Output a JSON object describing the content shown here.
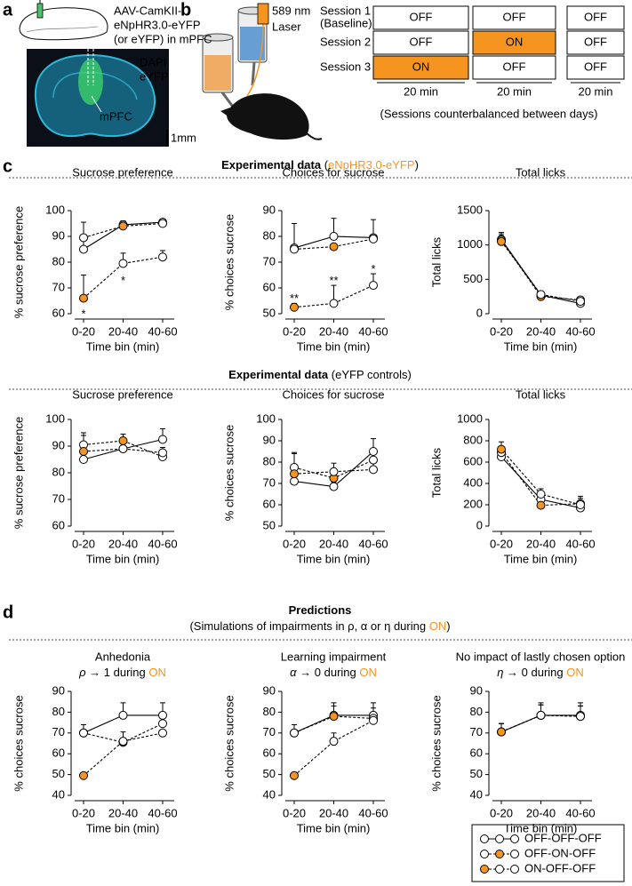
{
  "panel_labels": [
    "a",
    "b",
    "c",
    "d"
  ],
  "panel_a": {
    "construct": [
      "AAV-CamKII-",
      "eNpHR3.0-eYFP",
      "(or eYFP) in mPFC"
    ],
    "stains": [
      {
        "text": "DAPI",
        "color": "#3fd3ee"
      },
      {
        "text": "eYFP",
        "color": "#3ed86a"
      }
    ],
    "region": "mPFC",
    "scale": "1mm"
  },
  "panel_b": {
    "laser": [
      "589 nm",
      "Laser"
    ],
    "laser_color": "#f5941f",
    "sessions": [
      {
        "label": [
          "Session 1",
          "(Baseline)"
        ],
        "cells": [
          {
            "text": "OFF",
            "fill": "#ffffff"
          },
          {
            "text": "OFF",
            "fill": "#ffffff"
          },
          {
            "text": "OFF",
            "fill": "#ffffff"
          }
        ]
      },
      {
        "label": [
          "Session 2"
        ],
        "cells": [
          {
            "text": "OFF",
            "fill": "#ffffff"
          },
          {
            "text": "ON",
            "fill": "#f5941f"
          },
          {
            "text": "OFF",
            "fill": "#ffffff"
          }
        ]
      },
      {
        "label": [
          "Session 3"
        ],
        "cells": [
          {
            "text": "ON",
            "fill": "#f5941f"
          },
          {
            "text": "OFF",
            "fill": "#ffffff"
          },
          {
            "text": "OFF",
            "fill": "#ffffff"
          }
        ]
      }
    ],
    "durations": [
      "20 min",
      "20 min",
      "20 min"
    ],
    "note": "(Sessions counterbalanced between days)"
  },
  "headings": [
    [
      [
        {
          "text": "Experimental data",
          "bold": true
        },
        {
          "text": " ("
        },
        {
          "text": "eNpHR3.0-eYFP",
          "color": "#f5941f"
        },
        {
          "text": ")"
        }
      ]
    ],
    [
      [
        {
          "text": "Experimental data",
          "bold": true
        },
        {
          "text": " (eYFP controls)"
        }
      ]
    ],
    [
      [
        {
          "text": "Predictions",
          "bold": true
        }
      ],
      [
        {
          "text": "(Simulations of impairments in ρ, α or η during "
        },
        {
          "text": "ON",
          "color": "#f5941f"
        },
        {
          "text": ")"
        }
      ]
    ]
  ],
  "legend": [
    {
      "name": "OFF-OFF-OFF",
      "marker_colors": [
        "#ffffff",
        "#ffffff",
        "#ffffff"
      ],
      "dash": false
    },
    {
      "name": "OFF-ON-OFF",
      "marker_colors": [
        "#ffffff",
        "#f5941f",
        "#ffffff"
      ],
      "dash": true
    },
    {
      "name": "ON-OFF-OFF",
      "marker_colors": [
        "#f5941f",
        "#ffffff",
        "#ffffff"
      ],
      "dash": true
    }
  ],
  "chart_data": [
    {
      "type": "line",
      "title": "Sucrose preference",
      "y_label": "% sucrose preference",
      "x_label": "Time bin (min)",
      "categories": [
        "0-20",
        "20-40",
        "40-60"
      ],
      "ylim": [
        60,
        100
      ],
      "yticks": [
        60,
        70,
        80,
        90,
        100
      ],
      "series": [
        {
          "color": "#000000",
          "dash": false,
          "values": [
            85,
            94.5,
            95.5
          ],
          "errors": [
            4,
            1.5,
            1
          ],
          "marker_colors": [
            "#ffffff",
            "#ffffff",
            "#ffffff"
          ]
        },
        {
          "color": "#000000",
          "dash": true,
          "values": [
            89.5,
            94,
            95
          ],
          "errors": [
            6,
            2,
            1
          ],
          "marker_colors": [
            "#ffffff",
            "#f5941f",
            "#ffffff"
          ]
        },
        {
          "color": "#000000",
          "dash": true,
          "values": [
            66,
            79.5,
            82
          ],
          "errors": [
            9,
            4,
            2.5
          ],
          "marker_colors": [
            "#f5941f",
            "#ffffff",
            "#ffffff"
          ]
        }
      ],
      "annotations": [
        {
          "text": "*",
          "x": "0-20",
          "y": 61
        },
        {
          "text": "*",
          "x": "20-40",
          "y": 74
        }
      ]
    },
    {
      "type": "line",
      "title": "Choices for sucrose",
      "y_label": "% choices sucrose",
      "x_label": "Time bin (min)",
      "categories": [
        "0-20",
        "20-40",
        "40-60"
      ],
      "ylim": [
        50,
        90
      ],
      "yticks": [
        50,
        60,
        70,
        80,
        90
      ],
      "series": [
        {
          "color": "#000000",
          "dash": false,
          "values": [
            75.5,
            80,
            79.5
          ],
          "errors": [
            9.5,
            7,
            7
          ],
          "marker_colors": [
            "#ffffff",
            "#ffffff",
            "#ffffff"
          ]
        },
        {
          "color": "#000000",
          "dash": true,
          "values": [
            75,
            76,
            79
          ],
          "errors": [
            1,
            1,
            1
          ],
          "marker_colors": [
            "#ffffff",
            "#f5941f",
            "#ffffff"
          ]
        },
        {
          "color": "#000000",
          "dash": true,
          "values": [
            52.5,
            54,
            61
          ],
          "errors": [
            1.5,
            7,
            4.5
          ],
          "marker_colors": [
            "#f5941f",
            "#ffffff",
            "#ffffff"
          ]
        }
      ],
      "annotations": [
        {
          "text": "**",
          "x": "0-20",
          "y": 57
        },
        {
          "text": "**",
          "x": "20-40",
          "y": 64
        },
        {
          "text": "*",
          "x": "40-60",
          "y": 68.5
        }
      ]
    },
    {
      "type": "line",
      "title": "Total licks",
      "y_label": "Total licks",
      "x_label": "Time bin (min)",
      "categories": [
        "0-20",
        "20-40",
        "40-60"
      ],
      "ylim": [
        0,
        1500
      ],
      "yticks": [
        0,
        500,
        1000,
        1500
      ],
      "series": [
        {
          "color": "#000000",
          "dash": false,
          "values": [
            1080,
            270,
            150
          ],
          "errors": [
            100,
            30,
            40
          ],
          "marker_colors": [
            "#ffffff",
            "#ffffff",
            "#ffffff"
          ]
        },
        {
          "color": "#000000",
          "dash": true,
          "values": [
            1070,
            250,
            200
          ],
          "errors": [
            80,
            20,
            30
          ],
          "marker_colors": [
            "#ffffff",
            "#f5941f",
            "#ffffff"
          ]
        },
        {
          "color": "#000000",
          "dash": true,
          "values": [
            1050,
            280,
            180
          ],
          "errors": [
            130,
            30,
            40
          ],
          "marker_colors": [
            "#f5941f",
            "#ffffff",
            "#ffffff"
          ]
        }
      ]
    },
    {
      "type": "line",
      "title": "Sucrose preference",
      "y_label": "% sucrose preference",
      "x_label": "Time bin (min)",
      "categories": [
        "0-20",
        "20-40",
        "40-60"
      ],
      "ylim": [
        60,
        100
      ],
      "yticks": [
        60,
        70,
        80,
        90,
        100
      ],
      "series": [
        {
          "color": "#000000",
          "dash": false,
          "values": [
            85,
            89,
            92.5
          ],
          "errors": [
            2,
            1,
            4
          ],
          "marker_colors": [
            "#ffffff",
            "#ffffff",
            "#ffffff"
          ]
        },
        {
          "color": "#000000",
          "dash": true,
          "values": [
            90.5,
            92,
            86
          ],
          "errors": [
            4.5,
            2.5,
            1
          ],
          "marker_colors": [
            "#ffffff",
            "#f5941f",
            "#ffffff"
          ]
        },
        {
          "color": "#000000",
          "dash": true,
          "values": [
            88,
            89,
            87.5
          ],
          "errors": [
            6,
            1,
            2
          ],
          "marker_colors": [
            "#f5941f",
            "#ffffff",
            "#ffffff"
          ]
        }
      ]
    },
    {
      "type": "line",
      "title": "Choices for sucrose",
      "y_label": "% choices sucrose",
      "x_label": "Time bin (min)",
      "categories": [
        "0-20",
        "20-40",
        "40-60"
      ],
      "ylim": [
        50,
        100
      ],
      "yticks": [
        50,
        60,
        70,
        80,
        90,
        100
      ],
      "series": [
        {
          "color": "#000000",
          "dash": false,
          "values": [
            71,
            68.5,
            85
          ],
          "errors": [
            3,
            2,
            6
          ],
          "marker_colors": [
            "#ffffff",
            "#ffffff",
            "#ffffff"
          ]
        },
        {
          "color": "#000000",
          "dash": true,
          "values": [
            77.5,
            72.5,
            81
          ],
          "errors": [
            6.5,
            3,
            5
          ],
          "marker_colors": [
            "#ffffff",
            "#f5941f",
            "#ffffff"
          ]
        },
        {
          "color": "#000000",
          "dash": true,
          "values": [
            74.5,
            75.5,
            76.5
          ],
          "errors": [
            10,
            4,
            4
          ],
          "marker_colors": [
            "#f5941f",
            "#ffffff",
            "#ffffff"
          ]
        }
      ]
    },
    {
      "type": "line",
      "title": "Total licks",
      "y_label": "Total licks",
      "x_label": "Time bin (min)",
      "categories": [
        "0-20",
        "20-40",
        "40-60"
      ],
      "ylim": [
        0,
        1000
      ],
      "yticks": [
        0,
        200,
        400,
        600,
        800,
        1000
      ],
      "series": [
        {
          "color": "#000000",
          "dash": false,
          "values": [
            650,
            250,
            170
          ],
          "errors": [
            50,
            50,
            60
          ],
          "marker_colors": [
            "#ffffff",
            "#ffffff",
            "#ffffff"
          ]
        },
        {
          "color": "#000000",
          "dash": true,
          "values": [
            690,
            195,
            210
          ],
          "errors": [
            60,
            40,
            50
          ],
          "marker_colors": [
            "#ffffff",
            "#f5941f",
            "#ffffff"
          ]
        },
        {
          "color": "#000000",
          "dash": true,
          "values": [
            720,
            300,
            200
          ],
          "errors": [
            70,
            50,
            80
          ],
          "marker_colors": [
            "#f5941f",
            "#ffffff",
            "#ffffff"
          ]
        }
      ]
    },
    {
      "type": "line",
      "title": "Anhedonia",
      "subtitle": [
        {
          "text": "ρ",
          "italic": true
        },
        {
          "text": " → 1 during "
        },
        {
          "text": "ON",
          "color": "#f5941f"
        }
      ],
      "y_label": "% choices sucrose",
      "x_label": "Time bin (min)",
      "categories": [
        "0-20",
        "20-40",
        "40-60"
      ],
      "ylim": [
        40,
        90
      ],
      "yticks": [
        40,
        50,
        60,
        70,
        80,
        90
      ],
      "series": [
        {
          "color": "#000000",
          "dash": false,
          "values": [
            70,
            78.5,
            78.5
          ],
          "errors": [
            4,
            6,
            6
          ],
          "marker_colors": [
            "#ffffff",
            "#ffffff",
            "#ffffff"
          ]
        },
        {
          "color": "#000000",
          "dash": true,
          "values": [
            70,
            65.5,
            74.5
          ],
          "errors": [
            1,
            5,
            4
          ],
          "marker_colors": [
            "#ffffff",
            "#f5941f",
            "#ffffff"
          ]
        },
        {
          "color": "#000000",
          "dash": true,
          "values": [
            49.5,
            66,
            70
          ],
          "errors": [
            0,
            1,
            1
          ],
          "marker_colors": [
            "#f5941f",
            "#ffffff",
            "#ffffff"
          ]
        }
      ]
    },
    {
      "type": "line",
      "title": "Learning impairment",
      "subtitle": [
        {
          "text": "α",
          "italic": true
        },
        {
          "text": " → 0 during "
        },
        {
          "text": "ON",
          "color": "#f5941f"
        }
      ],
      "y_label": "% choices sucrose",
      "x_label": "Time bin (min)",
      "categories": [
        "0-20",
        "20-40",
        "40-60"
      ],
      "ylim": [
        40,
        90
      ],
      "yticks": [
        40,
        50,
        60,
        70,
        80,
        90
      ],
      "series": [
        {
          "color": "#000000",
          "dash": false,
          "values": [
            70,
            78.5,
            78.5
          ],
          "errors": [
            4,
            6,
            6
          ],
          "marker_colors": [
            "#ffffff",
            "#ffffff",
            "#ffffff"
          ]
        },
        {
          "color": "#000000",
          "dash": true,
          "values": [
            70,
            78,
            77
          ],
          "errors": [
            1,
            5,
            5
          ],
          "marker_colors": [
            "#ffffff",
            "#f5941f",
            "#ffffff"
          ]
        },
        {
          "color": "#000000",
          "dash": true,
          "values": [
            49.5,
            66,
            76
          ],
          "errors": [
            0,
            4,
            3
          ],
          "marker_colors": [
            "#f5941f",
            "#ffffff",
            "#ffffff"
          ]
        }
      ]
    },
    {
      "type": "line",
      "title": "No impact of lastly chosen option",
      "subtitle": [
        {
          "text": "η",
          "italic": true
        },
        {
          "text": " → 0 during "
        },
        {
          "text": "ON",
          "color": "#f5941f"
        }
      ],
      "y_label": "% choices sucrose",
      "x_label": "Time bin (min)",
      "categories": [
        "0-20",
        "20-40",
        "40-60"
      ],
      "ylim": [
        40,
        90
      ],
      "yticks": [
        40,
        50,
        60,
        70,
        80,
        90
      ],
      "series": [
        {
          "color": "#000000",
          "dash": false,
          "values": [
            70.5,
            78.5,
            78.5
          ],
          "errors": [
            4,
            6,
            6
          ],
          "marker_colors": [
            "#ffffff",
            "#ffffff",
            "#ffffff"
          ]
        },
        {
          "color": "#000000",
          "dash": true,
          "values": [
            70.5,
            78.5,
            78
          ],
          "errors": [
            4,
            5,
            5
          ],
          "marker_colors": [
            "#ffffff",
            "#f5941f",
            "#ffffff"
          ]
        },
        {
          "color": "#000000",
          "dash": true,
          "values": [
            70.5,
            78.5,
            78
          ],
          "errors": [
            4,
            5,
            5
          ],
          "marker_colors": [
            "#f5941f",
            "#ffffff",
            "#ffffff"
          ]
        }
      ]
    }
  ]
}
